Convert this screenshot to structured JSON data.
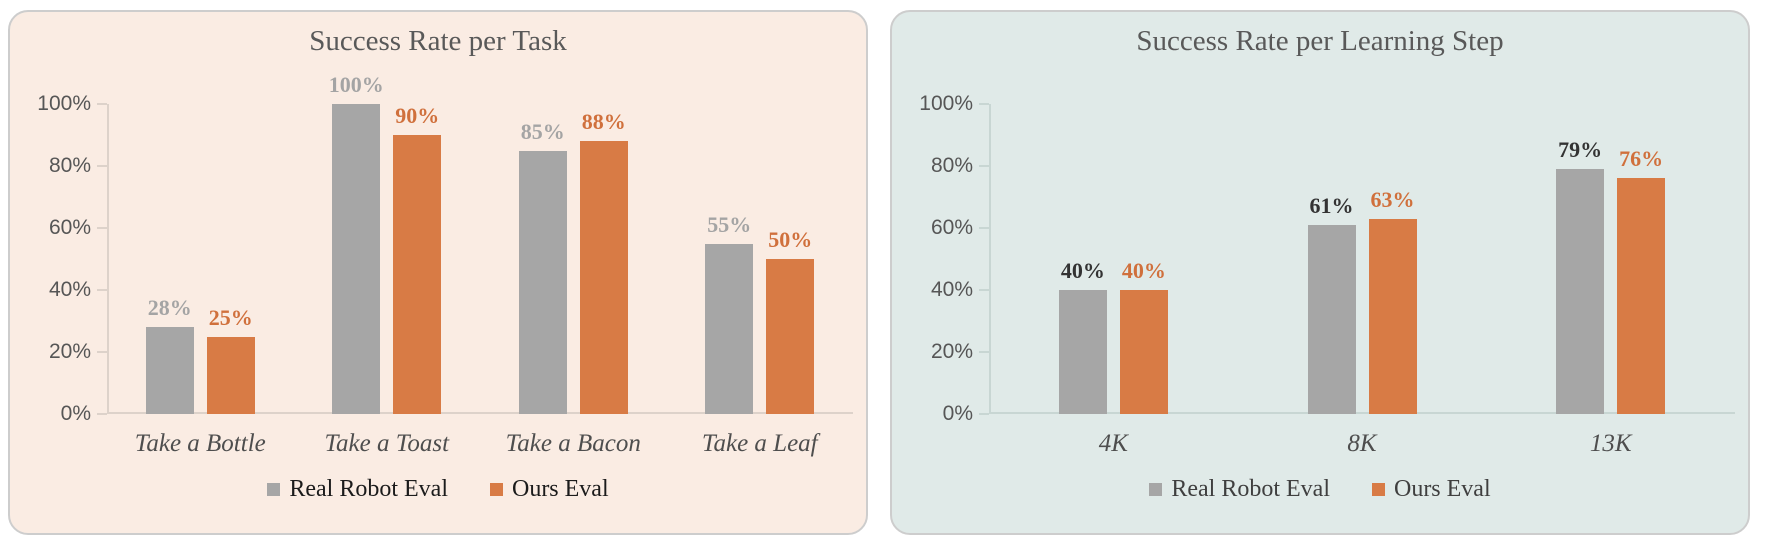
{
  "page": {
    "background": "#ffffff"
  },
  "chart_data": [
    {
      "type": "bar",
      "title": "Success Rate per Task",
      "categories": [
        "Take a Bottle",
        "Take a Toast",
        "Take a Bacon",
        "Take a Leaf"
      ],
      "series": [
        {
          "name": "Real Robot Eval",
          "values": [
            28,
            100,
            85,
            55
          ],
          "bar_color": "#a6a6a6",
          "label_color": "#a4a4a4"
        },
        {
          "name": "Ours Eval",
          "values": [
            25,
            90,
            88,
            50
          ],
          "bar_color": "#d87b45",
          "label_color": "#d0703c"
        }
      ],
      "value_suffix": "%",
      "ylim": [
        0,
        100
      ],
      "yticks": {
        "step": 20,
        "labels": [
          "0%",
          "20%",
          "40%",
          "60%",
          "80%",
          "100%"
        ]
      },
      "grid": false,
      "legend": {
        "position": "bottom-center"
      },
      "style": {
        "panel_bg": "#faece3",
        "panel_border": "#cdcdcd",
        "title_color": "#595959",
        "tick_color": "#565656",
        "category_color": "#4e4e4e",
        "legend_text_color": "#1b1b1b",
        "axis_color": "#ddd2ca"
      }
    },
    {
      "type": "bar",
      "title": "Success Rate per Learning Step",
      "categories": [
        "4K",
        "8K",
        "13K"
      ],
      "series": [
        {
          "name": "Real Robot Eval",
          "values": [
            40,
            61,
            79
          ],
          "bar_color": "#a6a6a6",
          "label_color": "#333333"
        },
        {
          "name": "Ours Eval",
          "values": [
            40,
            63,
            76
          ],
          "bar_color": "#d87b45",
          "label_color": "#d0703c"
        }
      ],
      "value_suffix": "%",
      "ylim": [
        0,
        100
      ],
      "yticks": {
        "step": 20,
        "labels": [
          "0%",
          "20%",
          "40%",
          "60%",
          "80%",
          "100%"
        ]
      },
      "grid": false,
      "legend": {
        "position": "bottom-center"
      },
      "style": {
        "panel_bg": "#e0eae8",
        "panel_border": "#cdcdcd",
        "title_color": "#595959",
        "tick_color": "#565656",
        "category_color": "#4e4e4e",
        "legend_text_color": "#3f3f3f",
        "axis_color": "#c8d6d3"
      }
    }
  ]
}
